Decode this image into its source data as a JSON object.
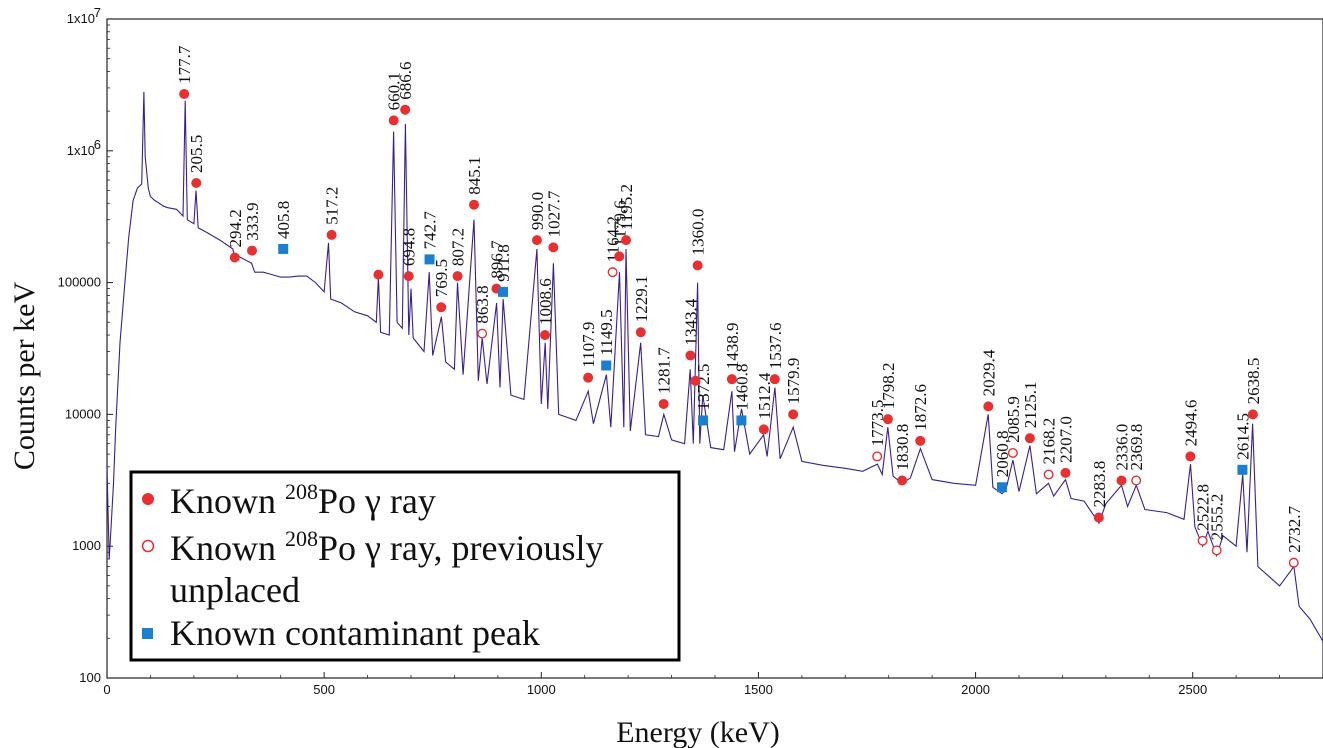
{
  "chart_data": {
    "type": "line",
    "xlabel": "Energy (keV)",
    "ylabel": "Counts per keV",
    "x_scale": "linear",
    "y_scale": "log",
    "xlim": [
      0,
      2800
    ],
    "ylim": [
      100,
      10000000
    ],
    "x_ticks": [
      0,
      500,
      1000,
      1500,
      2000,
      2500
    ],
    "y_ticks": [
      {
        "value": 100,
        "label": "100"
      },
      {
        "value": 1000,
        "label": "1000"
      },
      {
        "value": 10000,
        "label": "10000"
      },
      {
        "value": 100000,
        "label": "100000"
      },
      {
        "value": 1000000,
        "label": "1x10"
      },
      {
        "value": 10000000,
        "label": "1x10"
      }
    ],
    "y_tick_exponents": {
      "1000000": "6",
      "10000000": "7"
    },
    "colors": {
      "spectrum": "#3b1f8f",
      "known": "#e83030",
      "unplaced": "#e83030",
      "contaminant": "#1a7fd0"
    },
    "legend": {
      "placement": "bottom-left",
      "entries": [
        {
          "marker": "known",
          "prefix": "Known ",
          "sup": "208",
          "suffix": "Po γ ray",
          "line2": ""
        },
        {
          "marker": "unplaced",
          "prefix": "Known ",
          "sup": "208",
          "suffix": "Po γ ray, previously",
          "line2": "unplaced"
        },
        {
          "marker": "contaminant",
          "prefix": "Known contaminant peak",
          "sup": "",
          "suffix": "",
          "line2": ""
        }
      ]
    },
    "spectrum": [
      [
        0,
        4000
      ],
      [
        5,
        800
      ],
      [
        10,
        1500
      ],
      [
        15,
        3000
      ],
      [
        20,
        8000
      ],
      [
        30,
        35000
      ],
      [
        40,
        90000
      ],
      [
        50,
        220000
      ],
      [
        60,
        420000
      ],
      [
        70,
        520000
      ],
      [
        80,
        560000
      ],
      [
        85,
        2800000
      ],
      [
        88,
        900000
      ],
      [
        95,
        520000
      ],
      [
        100,
        450000
      ],
      [
        110,
        420000
      ],
      [
        120,
        400000
      ],
      [
        130,
        380000
      ],
      [
        140,
        370000
      ],
      [
        160,
        360000
      ],
      [
        175,
        320000
      ],
      [
        180,
        2400000
      ],
      [
        185,
        300000
      ],
      [
        200,
        280000
      ],
      [
        205,
        500000
      ],
      [
        210,
        260000
      ],
      [
        230,
        240000
      ],
      [
        260,
        210000
      ],
      [
        290,
        180000
      ],
      [
        294,
        150000
      ],
      [
        300,
        160000
      ],
      [
        333,
        140000
      ],
      [
        340,
        120000
      ],
      [
        360,
        120000
      ],
      [
        380,
        115000
      ],
      [
        400,
        110000
      ],
      [
        420,
        110000
      ],
      [
        440,
        112000
      ],
      [
        460,
        112000
      ],
      [
        480,
        100000
      ],
      [
        500,
        85000
      ],
      [
        510,
        200000
      ],
      [
        515,
        75000
      ],
      [
        540,
        70000
      ],
      [
        570,
        60000
      ],
      [
        600,
        56000
      ],
      [
        620,
        50000
      ],
      [
        625,
        110000
      ],
      [
        630,
        42000
      ],
      [
        650,
        40000
      ],
      [
        660,
        1400000
      ],
      [
        668,
        50000
      ],
      [
        680,
        45000
      ],
      [
        687,
        1600000
      ],
      [
        695,
        40000
      ],
      [
        700,
        90000
      ],
      [
        705,
        38000
      ],
      [
        730,
        30000
      ],
      [
        742,
        120000
      ],
      [
        750,
        28000
      ],
      [
        770,
        55000
      ],
      [
        780,
        25000
      ],
      [
        800,
        22000
      ],
      [
        807,
        100000
      ],
      [
        820,
        20000
      ],
      [
        845,
        300000
      ],
      [
        855,
        18000
      ],
      [
        864,
        38000
      ],
      [
        875,
        17000
      ],
      [
        897,
        70000
      ],
      [
        905,
        16000
      ],
      [
        912,
        75000
      ],
      [
        930,
        14000
      ],
      [
        960,
        13000
      ],
      [
        990,
        180000
      ],
      [
        1000,
        12000
      ],
      [
        1009,
        35000
      ],
      [
        1015,
        11000
      ],
      [
        1028,
        140000
      ],
      [
        1040,
        10000
      ],
      [
        1080,
        9000
      ],
      [
        1108,
        15000
      ],
      [
        1120,
        8500
      ],
      [
        1150,
        20000
      ],
      [
        1160,
        8000
      ],
      [
        1180,
        120000
      ],
      [
        1190,
        8000
      ],
      [
        1195,
        180000
      ],
      [
        1205,
        7500
      ],
      [
        1229,
        35000
      ],
      [
        1240,
        7000
      ],
      [
        1270,
        6800
      ],
      [
        1282,
        10000
      ],
      [
        1300,
        6400
      ],
      [
        1330,
        6000
      ],
      [
        1343,
        22000
      ],
      [
        1350,
        6000
      ],
      [
        1360,
        100000
      ],
      [
        1365,
        6000
      ],
      [
        1372,
        14000
      ],
      [
        1390,
        5600
      ],
      [
        1420,
        5400
      ],
      [
        1439,
        15000
      ],
      [
        1445,
        5200
      ],
      [
        1461,
        11000
      ],
      [
        1480,
        5000
      ],
      [
        1512,
        7000
      ],
      [
        1520,
        4800
      ],
      [
        1538,
        16000
      ],
      [
        1550,
        4600
      ],
      [
        1580,
        8000
      ],
      [
        1600,
        4400
      ],
      [
        1650,
        4100
      ],
      [
        1700,
        3900
      ],
      [
        1740,
        3700
      ],
      [
        1774,
        4200
      ],
      [
        1785,
        3500
      ],
      [
        1798,
        8000
      ],
      [
        1810,
        3400
      ],
      [
        1831,
        3000
      ],
      [
        1850,
        3300
      ],
      [
        1873,
        5500
      ],
      [
        1900,
        3200
      ],
      [
        1950,
        3000
      ],
      [
        2000,
        2900
      ],
      [
        2029,
        10000
      ],
      [
        2040,
        2800
      ],
      [
        2061,
        2500
      ],
      [
        2070,
        2700
      ],
      [
        2086,
        4500
      ],
      [
        2100,
        2600
      ],
      [
        2125,
        5800
      ],
      [
        2140,
        2500
      ],
      [
        2168,
        3000
      ],
      [
        2180,
        2400
      ],
      [
        2207,
        3200
      ],
      [
        2220,
        2300
      ],
      [
        2250,
        2200
      ],
      [
        2284,
        1500
      ],
      [
        2300,
        2100
      ],
      [
        2336,
        2900
      ],
      [
        2350,
        2000
      ],
      [
        2370,
        2900
      ],
      [
        2390,
        1900
      ],
      [
        2440,
        1800
      ],
      [
        2480,
        1600
      ],
      [
        2495,
        4200
      ],
      [
        2505,
        1400
      ],
      [
        2523,
        1000
      ],
      [
        2535,
        1300
      ],
      [
        2555,
        850
      ],
      [
        2570,
        1200
      ],
      [
        2600,
        1000
      ],
      [
        2615,
        3500
      ],
      [
        2625,
        900
      ],
      [
        2638,
        8500
      ],
      [
        2650,
        700
      ],
      [
        2700,
        500
      ],
      [
        2733,
        700
      ],
      [
        2745,
        350
      ],
      [
        2770,
        280
      ],
      [
        2800,
        190
      ]
    ],
    "peaks": [
      {
        "label": "177.7",
        "energy": 177.7,
        "marker_y": 2700000,
        "type": "known"
      },
      {
        "label": "205.5",
        "energy": 205.5,
        "marker_y": 570000,
        "type": "known"
      },
      {
        "label": "294.2",
        "energy": 294.2,
        "marker_y": 155000,
        "type": "known"
      },
      {
        "label": "333.9",
        "energy": 333.9,
        "marker_y": 175000,
        "type": "known"
      },
      {
        "label": "405.8",
        "energy": 405.8,
        "marker_y": 180000,
        "type": "contaminant"
      },
      {
        "label": "517.2",
        "energy": 517.2,
        "marker_y": 230000,
        "type": "known"
      },
      {
        "label": "",
        "energy": 625.0,
        "marker_y": 115000,
        "type": "known"
      },
      {
        "label": "660.1",
        "energy": 660.1,
        "marker_y": 1700000,
        "type": "known"
      },
      {
        "label": "686.6",
        "energy": 686.6,
        "marker_y": 2050000,
        "type": "known"
      },
      {
        "label": "694.8",
        "energy": 694.8,
        "marker_y": 112000,
        "type": "known"
      },
      {
        "label": "742.7",
        "energy": 742.7,
        "marker_y": 150000,
        "type": "contaminant"
      },
      {
        "label": "769.5",
        "energy": 769.5,
        "marker_y": 65000,
        "type": "known"
      },
      {
        "label": "807.2",
        "energy": 807.2,
        "marker_y": 112000,
        "type": "known"
      },
      {
        "label": "845.1",
        "energy": 845.1,
        "marker_y": 390000,
        "type": "known"
      },
      {
        "label": "863.8",
        "energy": 863.8,
        "marker_y": 41000,
        "type": "unplaced"
      },
      {
        "label": "896.7",
        "energy": 896.7,
        "marker_y": 90000,
        "type": "known"
      },
      {
        "label": "911.8",
        "energy": 911.8,
        "marker_y": 85000,
        "type": "contaminant"
      },
      {
        "label": "990.0",
        "energy": 990.0,
        "marker_y": 210000,
        "type": "known"
      },
      {
        "label": "1008.6",
        "energy": 1008.6,
        "marker_y": 40000,
        "type": "known"
      },
      {
        "label": "1027.7",
        "energy": 1027.7,
        "marker_y": 185000,
        "type": "known"
      },
      {
        "label": "1107.9",
        "energy": 1107.9,
        "marker_y": 19000,
        "type": "known"
      },
      {
        "label": "1149.5",
        "energy": 1149.5,
        "marker_y": 23500,
        "type": "contaminant"
      },
      {
        "label": "1164.2",
        "energy": 1164.2,
        "marker_y": 120000,
        "type": "unplaced"
      },
      {
        "label": "1179.6",
        "energy": 1179.6,
        "marker_y": 158000,
        "type": "known"
      },
      {
        "label": "1195.2",
        "energy": 1195.2,
        "marker_y": 210000,
        "type": "known"
      },
      {
        "label": "1229.1",
        "energy": 1229.1,
        "marker_y": 42000,
        "type": "known"
      },
      {
        "label": "1281.7",
        "energy": 1281.7,
        "marker_y": 12000,
        "type": "known"
      },
      {
        "label": "1343.4",
        "energy": 1343.4,
        "marker_y": 28000,
        "type": "known"
      },
      {
        "label": "1360.0",
        "energy": 1360.0,
        "marker_y": 135000,
        "type": "known"
      },
      {
        "label": "1372.5",
        "energy": 1372.5,
        "marker_y": 9000,
        "type": "contaminant"
      },
      {
        "label": "",
        "energy": 1355.0,
        "marker_y": 18000,
        "type": "known"
      },
      {
        "label": "1438.9",
        "energy": 1438.9,
        "marker_y": 18500,
        "type": "known"
      },
      {
        "label": "1460.8",
        "energy": 1460.8,
        "marker_y": 9000,
        "type": "contaminant"
      },
      {
        "label": "1512.4",
        "energy": 1512.4,
        "marker_y": 7700,
        "type": "known"
      },
      {
        "label": "1537.6",
        "energy": 1537.6,
        "marker_y": 18500,
        "type": "known"
      },
      {
        "label": "1579.9",
        "energy": 1579.9,
        "marker_y": 10000,
        "type": "known"
      },
      {
        "label": "1773.5",
        "energy": 1773.5,
        "marker_y": 4800,
        "type": "unplaced"
      },
      {
        "label": "1798.2",
        "energy": 1798.2,
        "marker_y": 9200,
        "type": "known"
      },
      {
        "label": "1830.8",
        "energy": 1830.8,
        "marker_y": 3150,
        "type": "known"
      },
      {
        "label": "1872.6",
        "energy": 1872.6,
        "marker_y": 6300,
        "type": "known"
      },
      {
        "label": "2029.4",
        "energy": 2029.4,
        "marker_y": 11500,
        "type": "known"
      },
      {
        "label": "2060.8",
        "energy": 2060.8,
        "marker_y": 2800,
        "type": "contaminant"
      },
      {
        "label": "2085.9",
        "energy": 2085.9,
        "marker_y": 5100,
        "type": "unplaced"
      },
      {
        "label": "2125.1",
        "energy": 2125.1,
        "marker_y": 6600,
        "type": "known"
      },
      {
        "label": "2168.2",
        "energy": 2168.2,
        "marker_y": 3500,
        "type": "unplaced"
      },
      {
        "label": "2207.0",
        "energy": 2207.0,
        "marker_y": 3600,
        "type": "known"
      },
      {
        "label": "2283.8",
        "energy": 2283.8,
        "marker_y": 1650,
        "type": "known"
      },
      {
        "label": "2336.0",
        "energy": 2336.0,
        "marker_y": 3150,
        "type": "known"
      },
      {
        "label": "2369.8",
        "energy": 2369.8,
        "marker_y": 3150,
        "type": "unplaced"
      },
      {
        "label": "2494.6",
        "energy": 2494.6,
        "marker_y": 4800,
        "type": "known"
      },
      {
        "label": "2522.8",
        "energy": 2522.8,
        "marker_y": 1100,
        "type": "unplaced"
      },
      {
        "label": "2555.2",
        "energy": 2555.2,
        "marker_y": 930,
        "type": "unplaced"
      },
      {
        "label": "2614.5",
        "energy": 2614.5,
        "marker_y": 3800,
        "type": "contaminant"
      },
      {
        "label": "2638.5",
        "energy": 2638.5,
        "marker_y": 10000,
        "type": "known"
      },
      {
        "label": "2732.7",
        "energy": 2732.7,
        "marker_y": 750,
        "type": "unplaced"
      }
    ]
  }
}
